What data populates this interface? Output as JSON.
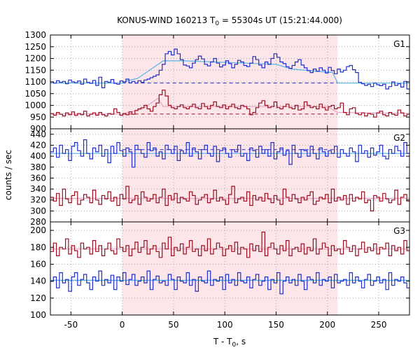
{
  "chart_data": {
    "type": "line",
    "title_main": "KONUS-WIND 160213 T",
    "title_sub": "0",
    "title_rest": " = 55304s UT (15:21:44.000)",
    "xlabel_main": "T - T",
    "xlabel_sub": "0",
    "xlabel_rest": ", s",
    "ylabel": "counts / sec",
    "xlim": [
      -70,
      280
    ],
    "x_ticks": [
      -50,
      0,
      50,
      100,
      150,
      200,
      250
    ],
    "grid": true,
    "highlight_interval": [
      0,
      210
    ],
    "colors": {
      "blue": "#1f2fc8",
      "red": "#9b1020",
      "fit_blue": "#54b4e6",
      "fit_red": "#e8a0c4",
      "band": "#fde6ea",
      "grid": "#a8a8a8"
    },
    "panels": [
      {
        "label": "G1",
        "ylim": [
          900,
          1300
        ],
        "y_ticks": [
          900,
          950,
          1000,
          1050,
          1100,
          1150,
          1200,
          1250,
          1300
        ],
        "series": [
          {
            "color": "blue",
            "step": 2.944,
            "values": [
              1100,
              1095,
              1105,
              1098,
              1102,
              1092,
              1108,
              1100,
              1096,
              1104,
              1090,
              1112,
              1098,
              1094,
              1106,
              1085,
              1120,
              1075,
              1102,
              1098,
              1110,
              1094,
              1090,
              1104,
              1100,
              1112,
              1096,
              1102,
              1095,
              1105,
              1098,
              1108,
              1112,
              1118,
              1124,
              1130,
              1150,
              1175,
              1220,
              1230,
              1215,
              1240,
              1220,
              1195,
              1172,
              1168,
              1160,
              1180,
              1195,
              1210,
              1198,
              1175,
              1168,
              1185,
              1200,
              1180,
              1164,
              1172,
              1190,
              1178,
              1160,
              1175,
              1192,
              1185,
              1170,
              1165,
              1180,
              1208,
              1195,
              1172,
              1160,
              1185,
              1175,
              1200,
              1220,
              1205,
              1185,
              1178,
              1165,
              1158,
              1170,
              1185,
              1195,
              1172,
              1160,
              1148,
              1140,
              1155,
              1145,
              1160,
              1150,
              1138,
              1162,
              1148,
              1135,
              1155,
              1142,
              1150,
              1165,
              1170,
              1152,
              1140,
              1098,
              1092,
              1085,
              1090,
              1080,
              1095,
              1088,
              1084,
              1090,
              1070,
              1080,
              1100,
              1085,
              1092,
              1078,
              1102,
              1070,
              1090,
              1095,
              1085,
              1092,
              1078,
              1090
            ]
          },
          {
            "color": "red",
            "step": 2.944,
            "values": [
              965,
              958,
              970,
              962,
              955,
              968,
              960,
              972,
              957,
              965,
              960,
              975,
              955,
              962,
              968,
              958,
              970,
              960,
              955,
              965,
              962,
              985,
              970,
              958,
              965,
              960,
              972,
              962,
              978,
              985,
              990,
              1000,
              985,
              975,
              995,
              1010,
              1045,
              1065,
              1040,
              1000,
              990,
              985,
              995,
              1002,
              990,
              985,
              995,
              1005,
              990,
              985,
              1008,
              995,
              985,
              1000,
              1015,
              995,
              990,
              1002,
              985,
              995,
              1005,
              990,
              985,
              1000,
              995,
              985,
              960,
              970,
              990,
              1010,
              1020,
              1000,
              990,
              995,
              1015,
              990,
              985,
              995,
              1005,
              990,
              985,
              1000,
              980,
              985,
              1015,
              1000,
              990,
              995,
              985,
              1005,
              990,
              980,
              995,
              1000,
              985,
              990,
              1010,
              970,
              960,
              985,
              990,
              965,
              960,
              968,
              955,
              965,
              962,
              950,
              968,
              975,
              960,
              955,
              970,
              962,
              958,
              980,
              968,
              955,
              962,
              985,
              965,
              958,
              970,
              962,
              960
            ]
          }
        ],
        "fits": [
          {
            "color": "fit_blue",
            "points": [
              [
                -70,
                1095
              ],
              [
                0,
                1095
              ],
              [
                5,
                1105
              ],
              [
                15,
                1115
              ],
              [
                30,
                1160
              ],
              [
                40,
                1190
              ],
              [
                60,
                1190
              ],
              [
                120,
                1180
              ],
              [
                150,
                1175
              ],
              [
                165,
                1155
              ],
              [
                205,
                1140
              ],
              [
                210,
                1095
              ],
              [
                280,
                1095
              ]
            ]
          },
          {
            "color": "fit_red",
            "points": [
              [
                -70,
                963
              ],
              [
                0,
                963
              ],
              [
                20,
                985
              ],
              [
                35,
                1030
              ],
              [
                40,
                995
              ],
              [
                200,
                995
              ],
              [
                210,
                970
              ],
              [
                280,
                965
              ]
            ]
          }
        ],
        "background_lines": [
          {
            "color": "blue",
            "y": 1095,
            "x": [
              0,
              210
            ]
          },
          {
            "color": "red",
            "y": 963,
            "x": [
              0,
              210
            ]
          }
        ]
      },
      {
        "label": "G2",
        "ylim": [
          280,
          450
        ],
        "y_ticks": [
          280,
          300,
          320,
          340,
          360,
          380,
          400,
          420,
          440
        ],
        "series": [
          {
            "color": "blue",
            "step": 2.944,
            "values": [
              408,
              415,
              398,
              420,
              405,
              412,
              392,
              418,
              425,
              410,
              400,
              430,
              405,
              395,
              415,
              408,
              420,
              400,
              412,
              388,
              418,
              405,
              425,
              410,
              400,
              415,
              408,
              380,
              420,
              412,
              405,
              398,
              425,
              410,
              415,
              400,
              408,
              395,
              420,
              412,
              405,
              418,
              392,
              410,
              405,
              425,
              400,
              415,
              408,
              395,
              412,
              420,
              405,
              400,
              418,
              390,
              410,
              415,
              405,
              398,
              412,
              408,
              420,
              400,
              405,
              392,
              415,
              410,
              398,
              418,
              405,
              412,
              400,
              425,
              395,
              408,
              415,
              402,
              410,
              385,
              420,
              405,
              398,
              412,
              410,
              400,
              418,
              405,
              395,
              415,
              408,
              400,
              410,
              405,
              418,
              398,
              412,
              405,
              400,
              415,
              408,
              390,
              420,
              405,
              410,
              398,
              415,
              402,
              408,
              420,
              400,
              395,
              412,
              405,
              418,
              410,
              400,
              425,
              405,
              398,
              412,
              408,
              415,
              400,
              410
            ]
          },
          {
            "color": "red",
            "step": 2.944,
            "values": [
              325,
              318,
              332,
              310,
              340,
              322,
              315,
              328,
              335,
              312,
              320,
              330,
              325,
              315,
              338,
              320,
              312,
              328,
              322,
              335,
              318,
              325,
              310,
              330,
              322,
              345,
              315,
              320,
              328,
              312,
              335,
              325,
              318,
              322,
              330,
              315,
              325,
              340,
              310,
              328,
              320,
              332,
              315,
              325,
              322,
              318,
              335,
              328,
              312,
              320,
              325,
              330,
              315,
              322,
              338,
              318,
              325,
              320,
              312,
              330,
              345,
              315,
              322,
              325,
              318,
              335,
              310,
              328,
              320,
              325,
              318,
              332,
              322,
              315,
              328,
              320,
              312,
              340,
              325,
              318,
              330,
              322,
              315,
              325,
              320,
              328,
              335,
              312,
              318,
              325,
              322,
              330,
              315,
              340,
              318,
              325,
              320,
              328,
              312,
              330,
              318,
              325,
              322,
              335,
              315,
              320,
              300,
              328,
              325,
              318,
              332,
              322,
              315,
              320,
              338,
              312,
              325,
              330,
              318,
              322,
              328,
              315,
              320,
              325,
              322
            ]
          }
        ],
        "fits": [
          {
            "color": "fit_blue",
            "points": [
              [
                -70,
                405
              ],
              [
                280,
                405
              ]
            ]
          },
          {
            "color": "fit_red",
            "points": [
              [
                -70,
                323
              ],
              [
                280,
                323
              ]
            ]
          }
        ],
        "background_lines": [
          {
            "color": "blue",
            "y": 412,
            "x": [
              0,
              210
            ]
          }
        ]
      },
      {
        "label": "G3",
        "ylim": [
          100,
          210
        ],
        "y_ticks": [
          100,
          120,
          140,
          160,
          180,
          200
        ],
        "series": [
          {
            "color": "blue",
            "step": 2.944,
            "values": [
              140,
              145,
              132,
              150,
              138,
              142,
              128,
              145,
              150,
              135,
              142,
              148,
              138,
              130,
              145,
              140,
              152,
              135,
              142,
              138,
              147,
              130,
              145,
              140,
              150,
              136,
              142,
              148,
              135,
              140,
              145,
              138,
              152,
              130,
              142,
              146,
              138,
              140,
              135,
              148,
              142,
              130,
              145,
              140,
              138,
              150,
              135,
              142,
              128,
              145,
              140,
              138,
              152,
              135,
              142,
              140,
              145,
              130,
              148,
              138,
              142,
              135,
              150,
              140,
              138,
              145,
              132,
              142,
              148,
              135,
              140,
              145,
              130,
              142,
              138,
              150,
              125,
              140,
              145,
              138,
              142,
              135,
              148,
              140,
              130,
              145,
              142,
              138,
              150,
              135,
              142,
              140,
              145,
              132,
              148,
              138,
              140,
              142,
              135,
              150,
              138,
              145,
              140,
              132,
              142,
              148,
              135,
              140,
              145,
              138,
              142,
              130,
              150,
              135,
              142,
              140,
              145,
              138,
              132,
              148,
              140,
              142,
              135,
              145,
              140
            ]
          },
          {
            "color": "red",
            "step": 2.944,
            "values": [
              175,
              185,
              170,
              180,
              178,
              190,
              172,
              182,
              176,
              168,
              185,
              178,
              180,
              172,
              188,
              175,
              182,
              170,
              178,
              185,
              176,
              172,
              190,
              180,
              175,
              182,
              170,
              178,
              186,
              174,
              180,
              188,
              172,
              178,
              182,
              175,
              168,
              185,
              178,
              192,
              170,
              180,
              176,
              184,
              172,
              180,
              188,
              175,
              178,
              170,
              182,
              176,
              190,
              172,
              178,
              185,
              180,
              170,
              178,
              182,
              175,
              186,
              172,
              180,
              178,
              168,
              184,
              176,
              182,
              175,
              198,
              170,
              180,
              185,
              178,
              172,
              182,
              176,
              188,
              170,
              178,
              180,
              175,
              184,
              172,
              180,
              176,
              190,
              172,
              178,
              185,
              180,
              170,
              182,
              176,
              178,
              172,
              188,
              180,
              175,
              182,
              170,
              178,
              186,
              174,
              180,
              176,
              184,
              172,
              180,
              178,
              185,
              170,
              182,
              176,
              180,
              172,
              188,
              176,
              180,
              175,
              182,
              178,
              172,
              180
            ]
          }
        ],
        "fits": [
          {
            "color": "fit_blue",
            "points": [
              [
                -70,
                141
              ],
              [
                280,
                141
              ]
            ]
          },
          {
            "color": "fit_red",
            "points": [
              [
                -70,
                178
              ],
              [
                280,
                178
              ]
            ]
          }
        ],
        "background_lines": []
      }
    ]
  }
}
